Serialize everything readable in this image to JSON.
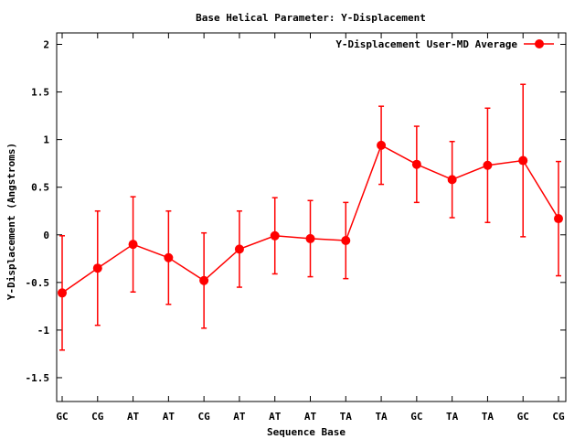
{
  "chart_data": {
    "type": "line",
    "title": "Base  Helical Parameter: Y-Displacement",
    "xlabel": "Sequence Base",
    "ylabel": "Y-Displacement (Angstroms)",
    "categories": [
      "GC",
      "CG",
      "AT",
      "AT",
      "CG",
      "AT",
      "AT",
      "AT",
      "TA",
      "TA",
      "GC",
      "TA",
      "TA",
      "GC",
      "CG"
    ],
    "series": [
      {
        "name": "Y-Displacement User-MD Average",
        "values": [
          -0.61,
          -0.35,
          -0.1,
          -0.24,
          -0.48,
          -0.15,
          -0.01,
          -0.04,
          -0.06,
          0.94,
          0.74,
          0.58,
          0.73,
          0.78,
          0.17
        ],
        "errors": [
          0.6,
          0.6,
          0.5,
          0.49,
          0.5,
          0.4,
          0.4,
          0.4,
          0.4,
          0.41,
          0.4,
          0.4,
          0.6,
          0.8,
          0.6
        ],
        "color": "#ff0000"
      }
    ],
    "ylim": [
      -1.75,
      2.12
    ],
    "yticks": [
      -1.5,
      -1,
      -0.5,
      0,
      0.5,
      1,
      1.5,
      2
    ],
    "ytick_labels": [
      "-1.5",
      "-1",
      "-0.5",
      "0",
      "0.5",
      "1",
      "1.5",
      "2"
    ],
    "legend": "top-right",
    "grid": false
  }
}
